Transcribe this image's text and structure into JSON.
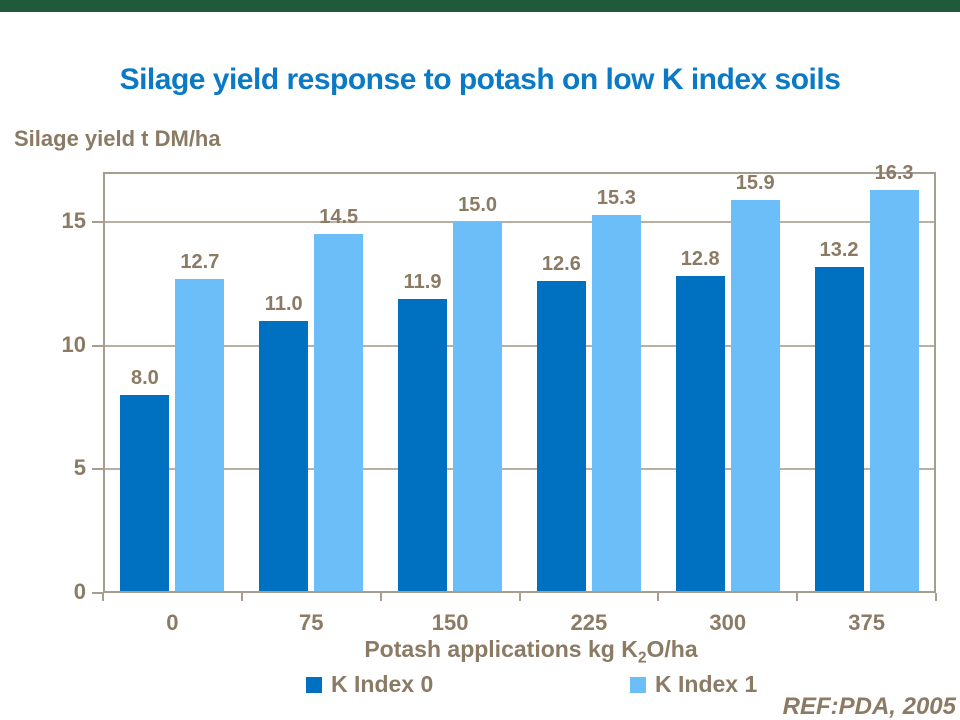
{
  "header": {
    "title": "Silage yield response to potash on low K index soils"
  },
  "chart_data": {
    "type": "bar",
    "title": "Silage yield response to potash on low K index soils",
    "y_axis_title": "Silage yield t DM/ha",
    "x_axis_title": {
      "prefix": "Potash applications kg K",
      "subscript": "2",
      "suffix": "O/ha"
    },
    "categories": [
      "0",
      "75",
      "150",
      "225",
      "300",
      "375"
    ],
    "series": [
      {
        "name": "K Index 0",
        "color": "#0070C0",
        "values": [
          8.0,
          11.0,
          11.9,
          12.6,
          12.8,
          13.2
        ]
      },
      {
        "name": "K Index 1",
        "color": "#6CBEF9",
        "values": [
          12.7,
          14.5,
          15.0,
          15.3,
          15.9,
          16.3
        ]
      }
    ],
    "y_ticks": [
      0,
      5,
      10,
      15
    ],
    "ylim": [
      0,
      17
    ],
    "grid": true,
    "legend_position": "bottom",
    "value_labels": true
  },
  "footer": {
    "ref": "REF:PDA, 2005"
  },
  "colors": {
    "title": "#0B7AC6",
    "text": "#8B7A64",
    "axis_frame": "#A89E90",
    "gridline": "#B9AFA3",
    "top_bar": "#20593B",
    "background": "#FFFFFF"
  }
}
